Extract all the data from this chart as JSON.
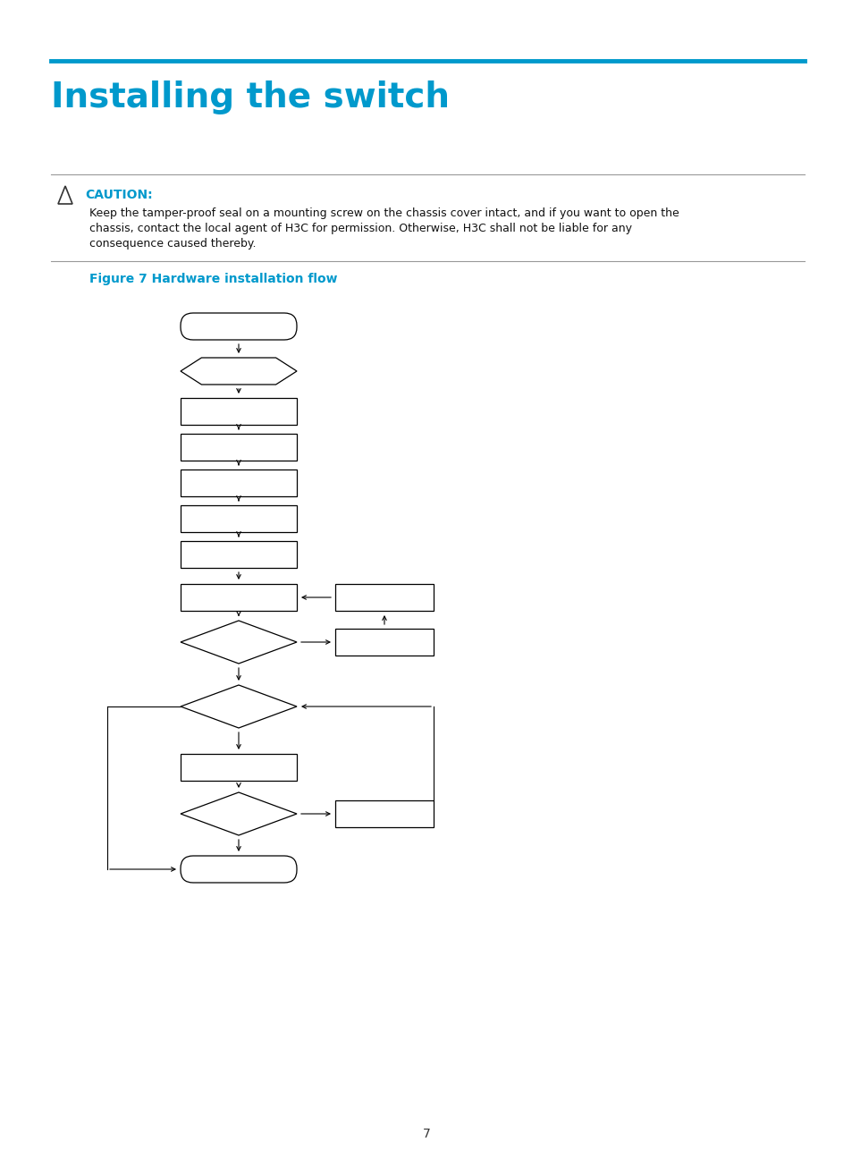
{
  "page_title": "Installing the switch",
  "title_color": "#0099CC",
  "title_bar_color": "#0099CC",
  "caution_color": "#0099CC",
  "caution_title": "CAUTION:",
  "caution_text": "Keep the tamper-proof seal on a mounting screw on the chassis cover intact, and if you want to open the\nchassis, contact the local agent of H3C for permission. Otherwise, H3C shall not be liable for any\nconsequence caused thereby.",
  "figure_caption": "Figure 7 Hardware installation flow",
  "figure_caption_color": "#0099CC",
  "page_number": "7",
  "bg_color": "#ffffff"
}
